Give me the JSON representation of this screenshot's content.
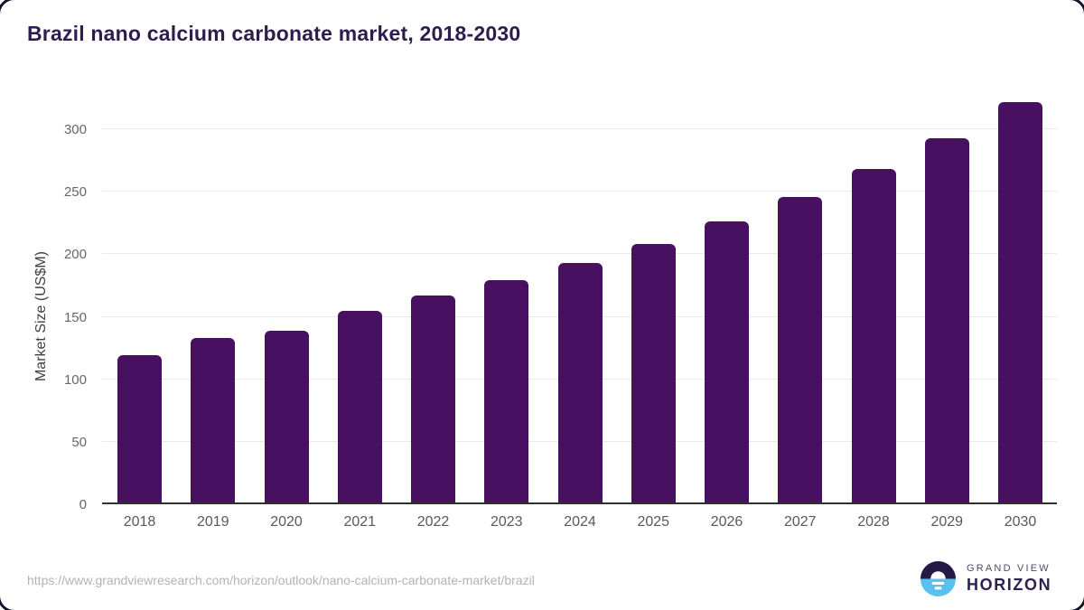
{
  "chart_data": {
    "type": "bar",
    "title": "Brazil nano calcium carbonate market, 2018-2030",
    "categories": [
      "2018",
      "2019",
      "2020",
      "2021",
      "2022",
      "2023",
      "2024",
      "2025",
      "2026",
      "2027",
      "2028",
      "2029",
      "2030"
    ],
    "values": [
      119,
      133,
      139,
      155,
      167,
      179,
      193,
      208,
      226,
      246,
      268,
      293,
      322
    ],
    "xlabel": "",
    "ylabel": "Market Size (US$M)",
    "ylim": [
      0,
      300
    ],
    "yticks": [
      0,
      50,
      100,
      150,
      200,
      250,
      300
    ],
    "grid": true,
    "legend": false,
    "bar_color": "#481060"
  },
  "footer": {
    "source_url": "https://www.grandviewresearch.com/horizon/outlook/nano-calcium-carbonate-market/brazil",
    "brand": {
      "top": "GRAND VIEW",
      "bottom": "HORIZON"
    }
  },
  "colors": {
    "title_text": "#2f1c4f",
    "bar": "#481060",
    "gridline": "#e9e9e9",
    "baseline": "#303030",
    "tick_text": "#666666",
    "xtick_text": "#595959",
    "url_text": "#b3b3b3",
    "logo_dark": "#241a44",
    "logo_blue": "#58c1ef"
  }
}
